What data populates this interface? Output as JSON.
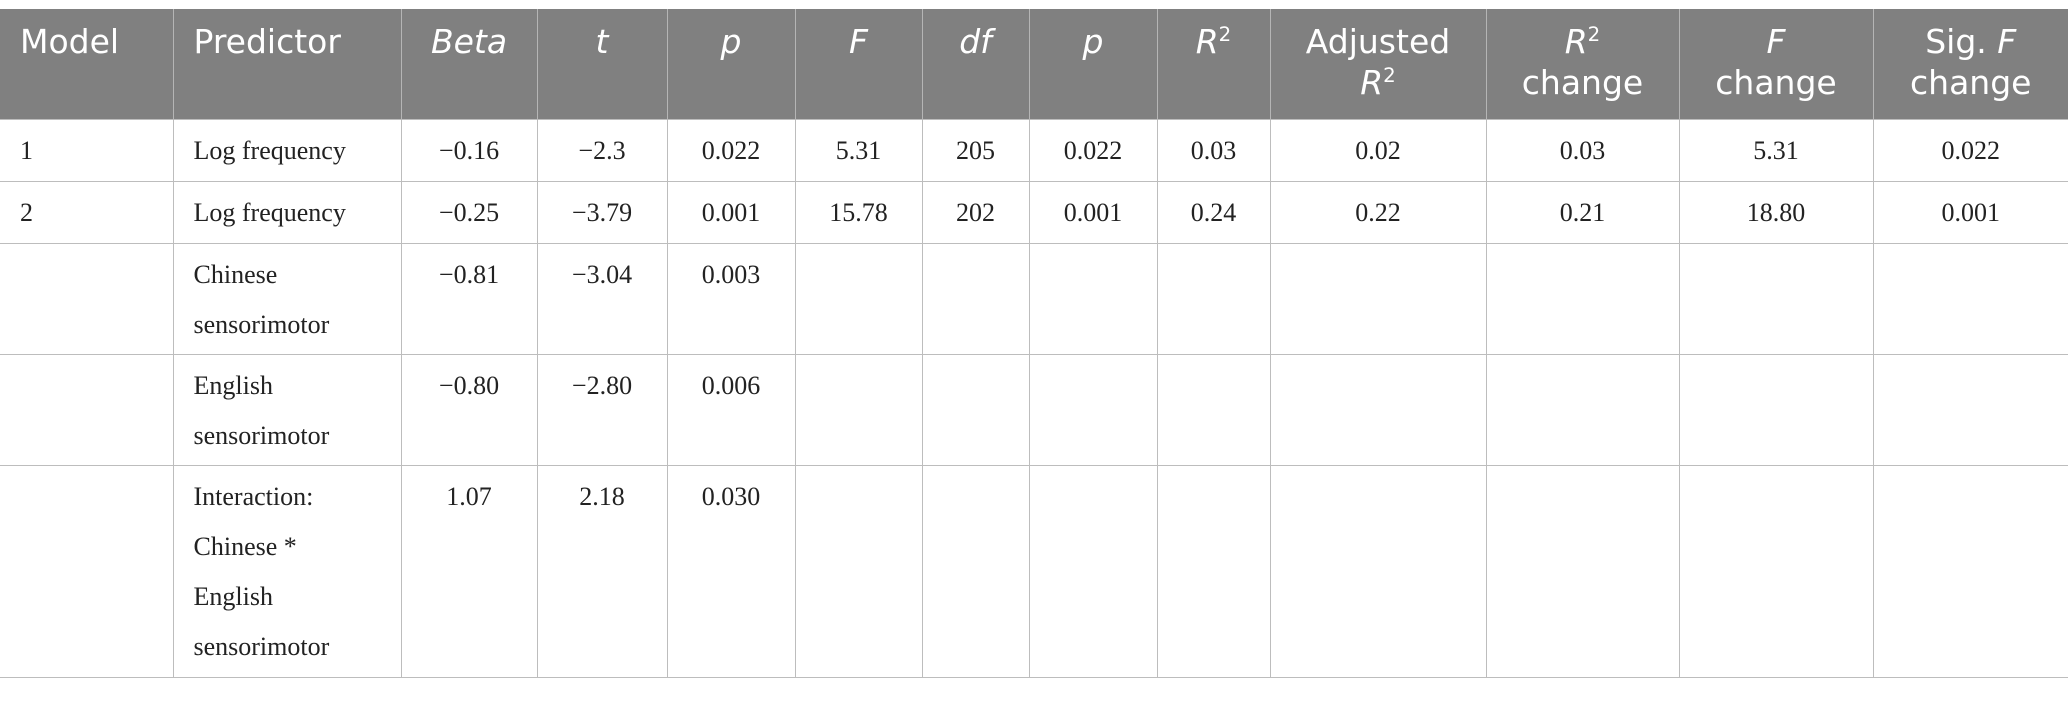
{
  "table": {
    "header": [
      [
        "Model"
      ],
      [
        "Predictor"
      ],
      [
        "Beta"
      ],
      [
        "t"
      ],
      [
        "p"
      ],
      [
        "F"
      ],
      [
        "df"
      ],
      [
        "p"
      ],
      [
        "R",
        "2"
      ],
      [
        "Adjusted",
        "R",
        "2"
      ],
      [
        "R",
        "2",
        "change"
      ],
      [
        "F",
        "change"
      ],
      [
        "Sig.",
        "F",
        "change"
      ]
    ],
    "rows": [
      [
        "1",
        "Log frequency",
        "−0.16",
        "−2.3",
        "0.022",
        "5.31",
        "205",
        "0.022",
        "0.03",
        "0.02",
        "0.03",
        "5.31",
        "0.022"
      ],
      [
        "2",
        "Log frequency",
        "−0.25",
        "−3.79",
        "0.001",
        "15.78",
        "202",
        "0.001",
        "0.24",
        "0.22",
        "0.21",
        "18.80",
        "0.001"
      ],
      [
        null,
        "Chinese sensorimotor",
        "−0.81",
        "−3.04",
        "0.003",
        null,
        null,
        null,
        null,
        null,
        null,
        null,
        null
      ],
      [
        null,
        "English sensorimotor",
        "−0.80",
        "−2.80",
        "0.006",
        null,
        null,
        null,
        null,
        null,
        null,
        null,
        null
      ],
      [
        null,
        "Interaction: Chinese * English sensorimotor",
        "1.07",
        "2.18",
        "0.030",
        null,
        null,
        null,
        null,
        null,
        null,
        null,
        null
      ]
    ]
  }
}
